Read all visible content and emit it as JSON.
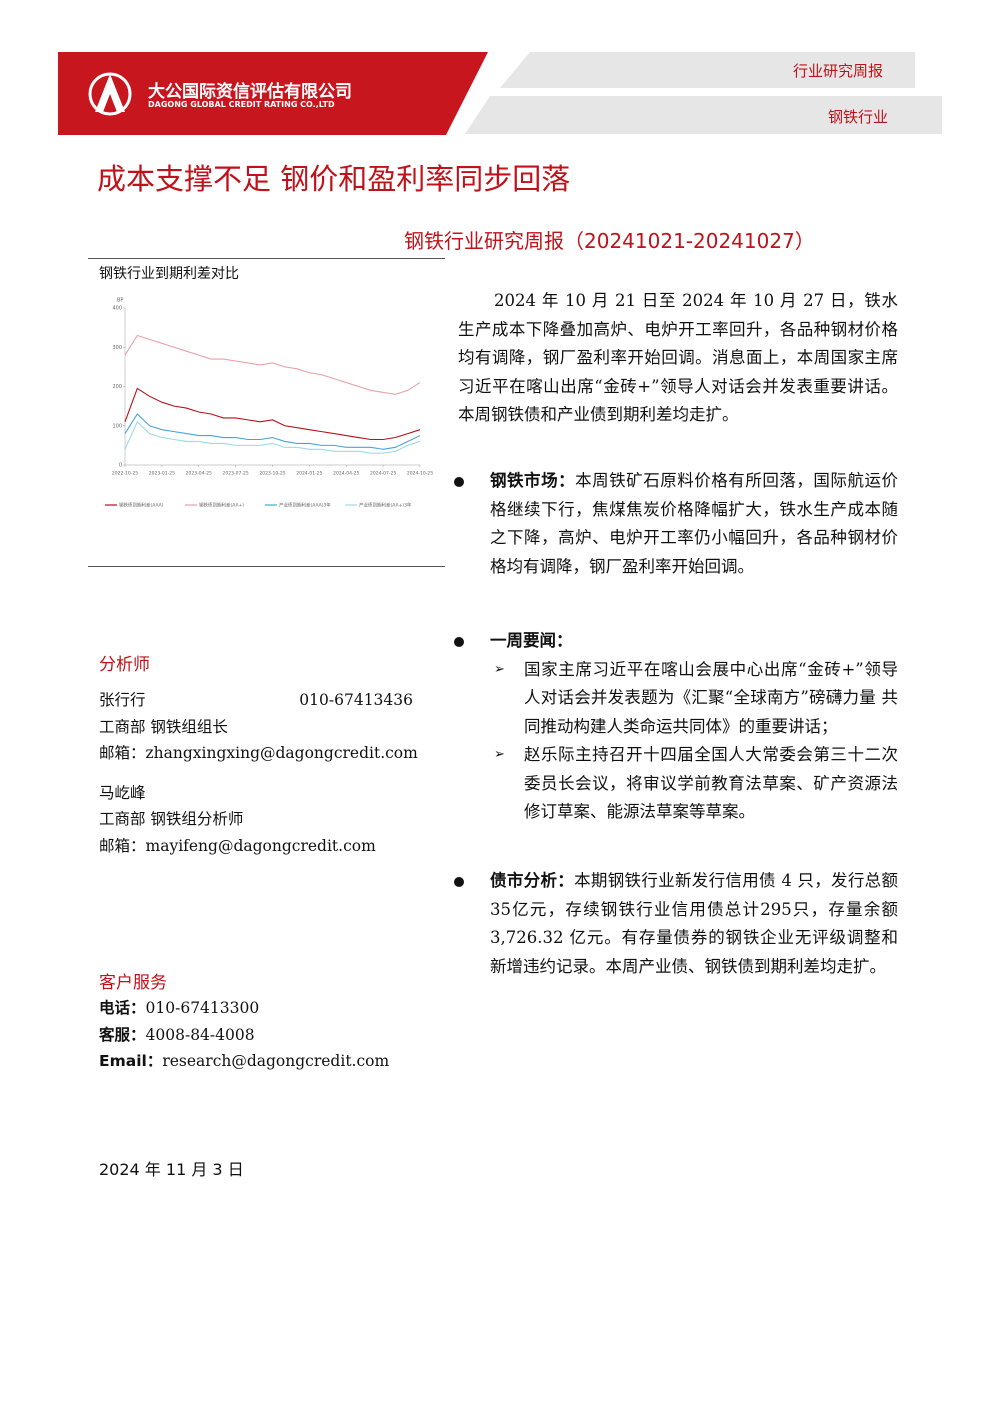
{
  "header": {
    "company_cn": "大公国际资信评估有限公司",
    "company_en": "DAGONG GLOBAL CREDIT RATING CO.,LTD",
    "report_type": "行业研究周报",
    "industry": "钢铁行业"
  },
  "title": "成本支撑不足 钢价和盈利率同步回落",
  "subtitle": "钢铁行业研究周报（20241021-20241027）",
  "chart_data": {
    "type": "line",
    "title": "钢铁行业到期利差对比",
    "ylabel": "BP",
    "x": [
      0,
      1,
      2,
      3,
      4,
      5,
      6,
      7,
      8,
      9,
      10,
      11,
      12,
      13,
      14,
      15,
      16,
      17,
      18,
      19,
      20,
      21,
      22,
      23,
      24
    ],
    "xlim": [
      0,
      24
    ],
    "xticks": [
      {
        "value": 0,
        "label": "2022-10-25"
      },
      {
        "value": 3,
        "label": "2023-01-25"
      },
      {
        "value": 6,
        "label": "2023-04-25"
      },
      {
        "value": 9,
        "label": "2023-07-25"
      },
      {
        "value": 12,
        "label": "2023-10-25"
      },
      {
        "value": 15,
        "label": "2024-01-25"
      },
      {
        "value": 18,
        "label": "2024-04-25"
      },
      {
        "value": 21,
        "label": "2024-07-25"
      },
      {
        "value": 24,
        "label": "2024-10-25"
      }
    ],
    "ylim": [
      0,
      400
    ],
    "yticks": [
      0,
      100,
      200,
      300,
      400
    ],
    "series": [
      {
        "name": "钢铁债到期利差(AAA)",
        "color": "#b5121b",
        "values": [
          110,
          195,
          175,
          160,
          150,
          145,
          135,
          130,
          120,
          120,
          115,
          110,
          115,
          100,
          95,
          90,
          85,
          80,
          75,
          70,
          65,
          65,
          70,
          80,
          90
        ]
      },
      {
        "name": "钢铁债到期利差(AA+)",
        "color": "#e8a0a8",
        "values": [
          280,
          330,
          320,
          310,
          300,
          290,
          280,
          270,
          270,
          265,
          260,
          255,
          260,
          250,
          245,
          235,
          230,
          220,
          210,
          200,
          190,
          185,
          180,
          190,
          210
        ]
      },
      {
        "name": "产业债到期利差(AAA)3年",
        "color": "#4aa3d8",
        "values": [
          80,
          130,
          100,
          90,
          85,
          80,
          75,
          75,
          70,
          70,
          65,
          65,
          70,
          60,
          55,
          55,
          50,
          50,
          45,
          45,
          45,
          40,
          45,
          60,
          75
        ]
      },
      {
        "name": "产业债到期利差(AA+)3年",
        "color": "#9fd8e6",
        "values": [
          40,
          110,
          80,
          70,
          65,
          60,
          60,
          55,
          55,
          50,
          50,
          50,
          55,
          45,
          45,
          40,
          40,
          35,
          35,
          35,
          30,
          30,
          35,
          50,
          60
        ]
      }
    ]
  },
  "intro": "2024 年 10 月 21 日至 2024 年 10 月 27 日，铁水生产成本下降叠加高炉、电炉开工率回升，各品种钢材价格均有调降，钢厂盈利率开始回调。消息面上，本周国家主席习近平在喀山出席“金砖+”领导人对话会并发表重要讲话。本周钢铁债和产业债到期利差均走扩。",
  "sections": [
    {
      "label": "钢铁市场：",
      "text": "本周铁矿石原料价格有所回落，国际航运价格继续下行，焦煤焦炭价格降幅扩大，铁水生产成本随之下降，高炉、电炉开工率仍小幅回升，各品种钢材价格均有调降，钢厂盈利率开始回调。"
    },
    {
      "label": "一周要闻：",
      "items": [
        "国家主席习近平在喀山会展中心出席“金砖+”领导人对话会并发表题为《汇聚“全球南方”磅礴力量 共同推动构建人类命运共同体》的重要讲话；",
        "赵乐际主持召开十四届全国人大常委会第三十二次委员长会议，将审议学前教育法草案、矿产资源法修订草案、能源法草案等草案。"
      ]
    },
    {
      "label": "债市分析：",
      "text": "本期钢铁行业新发行信用债 4 只，发行总额35亿元，存续钢铁行业信用债总计295只，存量余额 3,726.32 亿元。有存量债券的钢铁企业无评级调整和新增违约记录。本周产业债、钢铁债到期利差均走扩。"
    }
  ],
  "analysts": {
    "heading": "分析师",
    "people": [
      {
        "name": "张行行",
        "phone": "010-67413436",
        "role": "工商部 钢铁组组长",
        "email": "邮箱：zhangxingxing@dagongcredit.com"
      },
      {
        "name": "马屹峰",
        "role": "工商部 钢铁组分析师",
        "email": "邮箱：mayifeng@dagongcredit.com"
      }
    ]
  },
  "service": {
    "heading": "客户服务",
    "lines": [
      {
        "label": "电话：",
        "value": "010-67413300"
      },
      {
        "label": "客服：",
        "value": "4008-84-4008"
      },
      {
        "label": "Email：",
        "value": "research@dagongcredit.com"
      }
    ]
  },
  "date": "2024 年 11 月 3 日"
}
